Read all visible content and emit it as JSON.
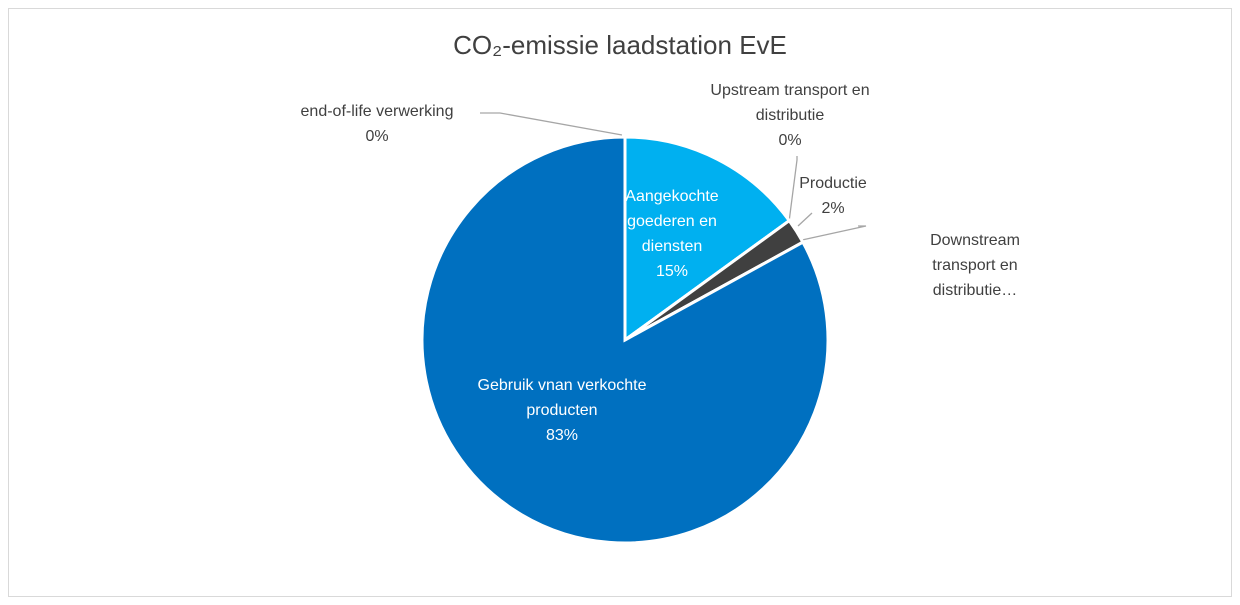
{
  "chart_data": {
    "type": "pie",
    "title": "CO₂-emissie laadstation EvE",
    "categories": [
      "Aangekochte goederen en diensten",
      "Upstream transport en distributie",
      "Productie",
      "Downstream transport en distributie…",
      "Gebruik vnan verkochte producten",
      "end-of-life verwerking"
    ],
    "values": [
      15,
      0,
      2,
      0,
      83,
      0
    ],
    "value_labels": [
      "15%",
      "0%",
      "2%",
      null,
      "83%",
      "0%"
    ],
    "colors": [
      "#00b0f0",
      "#a5a5a5",
      "#404040",
      "#9dc3e6",
      "#0070c0",
      "#7f7f7f"
    ]
  }
}
